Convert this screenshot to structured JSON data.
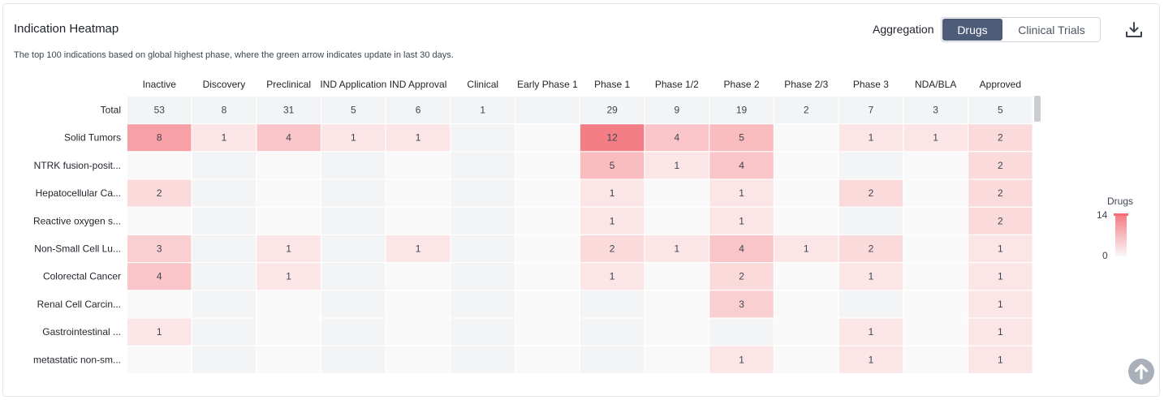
{
  "header": {
    "title": "Indication Heatmap",
    "subtitle": "The top 100 indications based on global highest phase, where the green arrow indicates update in last 30 days.",
    "aggregation_label": "Aggregation",
    "toggle": {
      "active": "Drugs",
      "inactive": "Clinical Trials"
    },
    "icons": {
      "download": "download-icon",
      "back_to_top": "arrow-up-icon"
    }
  },
  "legend": {
    "title": "Drugs",
    "max": "14",
    "min": "0",
    "color_high": "#f47a81",
    "color_low": "#f9f9f9"
  },
  "chart_data": {
    "type": "heatmap",
    "columns": [
      "Inactive",
      "Discovery",
      "Preclinical",
      "IND Application",
      "IND Approval",
      "Clinical",
      "Early Phase 1",
      "Phase 1",
      "Phase 1/2",
      "Phase 2",
      "Phase 2/3",
      "Phase 3",
      "NDA/BLA",
      "Approved"
    ],
    "total_label": "Total",
    "totals": [
      53,
      8,
      31,
      5,
      6,
      1,
      null,
      29,
      9,
      19,
      2,
      7,
      3,
      5
    ],
    "rows": [
      {
        "label": "Solid Tumors",
        "values": [
          8,
          1,
          4,
          1,
          1,
          null,
          null,
          12,
          4,
          5,
          null,
          1,
          1,
          2
        ]
      },
      {
        "label": "NTRK fusion-posit...",
        "values": [
          null,
          null,
          null,
          null,
          null,
          null,
          null,
          5,
          1,
          4,
          null,
          null,
          null,
          2
        ]
      },
      {
        "label": "Hepatocellular Ca...",
        "values": [
          2,
          null,
          null,
          null,
          null,
          null,
          null,
          1,
          null,
          1,
          null,
          2,
          null,
          2
        ]
      },
      {
        "label": "Reactive oxygen s...",
        "values": [
          null,
          null,
          null,
          null,
          null,
          null,
          null,
          1,
          null,
          1,
          null,
          null,
          null,
          2
        ]
      },
      {
        "label": "Non-Small Cell Lu...",
        "values": [
          3,
          null,
          1,
          null,
          1,
          null,
          null,
          2,
          1,
          4,
          1,
          2,
          null,
          1
        ]
      },
      {
        "label": "Colorectal Cancer",
        "values": [
          4,
          null,
          1,
          null,
          null,
          null,
          null,
          1,
          null,
          2,
          null,
          1,
          null,
          1
        ]
      },
      {
        "label": "Renal Cell Carcin...",
        "values": [
          null,
          null,
          null,
          null,
          null,
          null,
          null,
          null,
          null,
          3,
          null,
          null,
          null,
          1
        ]
      },
      {
        "label": "Gastrointestinal ...",
        "values": [
          1,
          null,
          null,
          null,
          null,
          null,
          null,
          null,
          null,
          null,
          null,
          1,
          null,
          1
        ]
      },
      {
        "label": "metastatic non-sm...",
        "values": [
          null,
          null,
          null,
          null,
          null,
          null,
          null,
          null,
          null,
          1,
          null,
          1,
          null,
          1
        ]
      }
    ],
    "scale": [
      0,
      14
    ],
    "colors": {
      "high": "#f47a81",
      "low": "#fdf3f4",
      "empty_odd": "#f9f9f9",
      "empty_even": "#f3f4f5",
      "total_bg": "#f3f4f5"
    }
  }
}
